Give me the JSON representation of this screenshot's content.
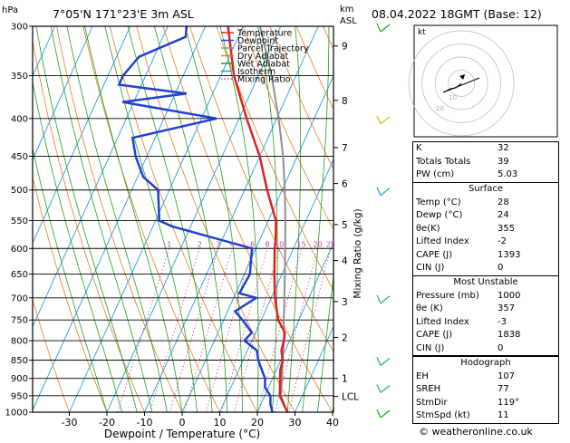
{
  "header": {
    "hpa_label": "hPa",
    "location": "7°05'N 171°23'E 3m ASL",
    "km_label": "km",
    "asl_label": "ASL",
    "datetime": "08.04.2022 18GMT (Base: 12)"
  },
  "legend": [
    {
      "label": "Temperature",
      "color": "#e02020",
      "dotted": false
    },
    {
      "label": "Dewpoint",
      "color": "#2040d0",
      "dotted": false
    },
    {
      "label": "Parcel Trajectory",
      "color": "#909090",
      "dotted": false
    },
    {
      "label": "Dry Adiabat",
      "color": "#e08020",
      "dotted": false
    },
    {
      "label": "Wet Adiabat",
      "color": "#20a020",
      "dotted": false
    },
    {
      "label": "Isotherm",
      "color": "#20a0e0",
      "dotted": false
    },
    {
      "label": "Mixing Ratio",
      "color": "#d040a0",
      "dotted": true
    }
  ],
  "chart_data": {
    "type": "skew-t",
    "xlabel": "Dewpoint / Temperature (°C)",
    "ylabel_right": "Mixing Ratio (g/kg)",
    "x_ticks": [
      "-30",
      "-20",
      "-10",
      "0",
      "10",
      "20",
      "30",
      "40"
    ],
    "x_tick_values": [
      -30,
      -20,
      -10,
      0,
      10,
      20,
      30,
      40
    ],
    "pressure_levels": [
      300,
      350,
      400,
      450,
      500,
      550,
      600,
      650,
      700,
      750,
      800,
      850,
      900,
      950,
      1000
    ],
    "pressure_labels": [
      "300",
      "350",
      "400",
      "450",
      "500",
      "550",
      "600",
      "650",
      "700",
      "750",
      "800",
      "850",
      "900",
      "950",
      "1000"
    ],
    "p_range": [
      300,
      1000
    ],
    "skew": 45,
    "km_ticks": [
      {
        "label": "9",
        "p": 319
      },
      {
        "label": "8",
        "p": 378
      },
      {
        "label": "7",
        "p": 438
      },
      {
        "label": "6",
        "p": 490
      },
      {
        "label": "5",
        "p": 557
      },
      {
        "label": "4",
        "p": 623
      },
      {
        "label": "3",
        "p": 708
      },
      {
        "label": "2",
        "p": 792
      },
      {
        "label": "1",
        "p": 900
      },
      {
        "label": "LCL",
        "p": 952
      }
    ],
    "mixing_ratio_labels": [
      "1",
      "2",
      "3",
      "4",
      "6",
      "8",
      "10",
      "15",
      "20",
      "25"
    ],
    "mixing_ratio_values": [
      1,
      2,
      3,
      4,
      6,
      8,
      10,
      15,
      20,
      25
    ],
    "temperature": [
      [
        1000,
        28
      ],
      [
        975,
        26
      ],
      [
        950,
        24
      ],
      [
        925,
        23
      ],
      [
        900,
        22
      ],
      [
        875,
        21
      ],
      [
        850,
        20.5
      ],
      [
        825,
        19
      ],
      [
        800,
        18.5
      ],
      [
        780,
        17.8
      ],
      [
        750,
        14.5
      ],
      [
        700,
        11
      ],
      [
        650,
        8
      ],
      [
        600,
        5
      ],
      [
        580,
        4
      ],
      [
        550,
        2
      ],
      [
        500,
        -4
      ],
      [
        450,
        -10
      ],
      [
        400,
        -18
      ],
      [
        350,
        -26.5
      ],
      [
        300,
        -34
      ]
    ],
    "dewpoint": [
      [
        1000,
        24
      ],
      [
        975,
        22.5
      ],
      [
        950,
        21.5
      ],
      [
        925,
        19
      ],
      [
        900,
        18
      ],
      [
        875,
        16
      ],
      [
        850,
        14
      ],
      [
        825,
        12.5
      ],
      [
        800,
        8
      ],
      [
        780,
        9
      ],
      [
        750,
        5
      ],
      [
        730,
        2
      ],
      [
        700,
        6
      ],
      [
        690,
        1
      ],
      [
        650,
        1.5
      ],
      [
        620,
        0
      ],
      [
        600,
        -1
      ],
      [
        560,
        -25
      ],
      [
        550,
        -29
      ],
      [
        500,
        -33
      ],
      [
        480,
        -38.5
      ],
      [
        450,
        -43
      ],
      [
        425,
        -46
      ],
      [
        400,
        -26
      ],
      [
        380,
        -53
      ],
      [
        370,
        -37
      ],
      [
        360,
        -56
      ],
      [
        350,
        -56
      ],
      [
        330,
        -54
      ],
      [
        310,
        -44
      ],
      [
        300,
        -45
      ]
    ],
    "parcel": [
      [
        1000,
        28
      ],
      [
        950,
        24.3
      ],
      [
        900,
        22.5
      ],
      [
        850,
        20.5
      ],
      [
        800,
        18.5
      ],
      [
        750,
        16
      ],
      [
        700,
        13.5
      ],
      [
        650,
        10.8
      ],
      [
        600,
        7.8
      ],
      [
        550,
        4.5
      ],
      [
        500,
        0.7
      ],
      [
        450,
        -3.8
      ],
      [
        400,
        -9.5
      ],
      [
        350,
        -16.5
      ],
      [
        300,
        -25.5
      ]
    ]
  },
  "hodograph": {
    "label": "kt",
    "rings": [
      "10",
      "20"
    ],
    "ring_values": [
      10,
      20,
      30,
      40
    ]
  },
  "wind_barbs": [
    {
      "p": 300,
      "color": "#20b020"
    },
    {
      "p": 400,
      "color": "#d0c020"
    },
    {
      "p": 500,
      "color": "#20b0b0"
    },
    {
      "p": 700,
      "color": "#20b0b0"
    },
    {
      "p": 850,
      "color": "#20b0b0"
    },
    {
      "p": 925,
      "color": "#20b0b0"
    },
    {
      "p": 1000,
      "color": "#20b020"
    }
  ],
  "indices": [
    {
      "k": "K",
      "v": "32"
    },
    {
      "k": "Totals Totals",
      "v": "39"
    },
    {
      "k": "PW (cm)",
      "v": "5.03"
    }
  ],
  "surface": {
    "title": "Surface",
    "rows": [
      {
        "k": "Temp (°C)",
        "v": "28"
      },
      {
        "k": "Dewp (°C)",
        "v": "24"
      },
      {
        "k": "θe(K)",
        "v": "355"
      },
      {
        "k": "Lifted Index",
        "v": "-2"
      },
      {
        "k": "CAPE (J)",
        "v": "1393"
      },
      {
        "k": "CIN (J)",
        "v": "0"
      }
    ]
  },
  "most_unstable": {
    "title": "Most Unstable",
    "rows": [
      {
        "k": "Pressure (mb)",
        "v": "1000"
      },
      {
        "k": "θe (K)",
        "v": "357"
      },
      {
        "k": "Lifted Index",
        "v": "-3"
      },
      {
        "k": "CAPE (J)",
        "v": "1838"
      },
      {
        "k": "CIN (J)",
        "v": "0"
      }
    ]
  },
  "hodograph_table": {
    "title": "Hodograph",
    "rows": [
      {
        "k": "EH",
        "v": "107"
      },
      {
        "k": "SREH",
        "v": "77"
      },
      {
        "k": "StmDir",
        "v": "119°"
      },
      {
        "k": "StmSpd (kt)",
        "v": "11"
      }
    ]
  },
  "watermark": "© weatheronline.co.uk"
}
